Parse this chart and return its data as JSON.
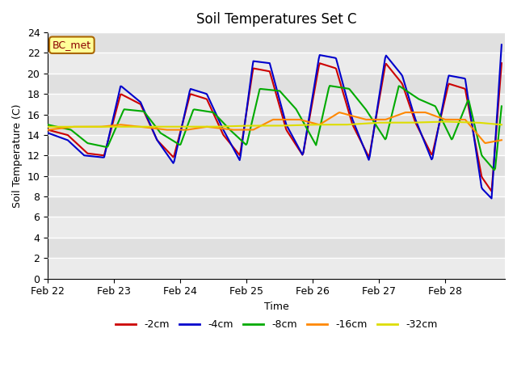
{
  "title": "Soil Temperatures Set C",
  "xlabel": "Time",
  "ylabel": "Soil Temperature (C)",
  "annotation": "BC_met",
  "ylim": [
    0,
    24
  ],
  "yticks": [
    0,
    2,
    4,
    6,
    8,
    10,
    12,
    14,
    16,
    18,
    20,
    22,
    24
  ],
  "xtick_labels": [
    "Feb 22",
    "Feb 23",
    "Feb 24",
    "Feb 25",
    "Feb 26",
    "Feb 27",
    "Feb 28"
  ],
  "plot_bg_color": "#e8e8e8",
  "grid_color": "#ffffff",
  "series": [
    {
      "label": "-2cm",
      "color": "#cc0000",
      "knots_x": [
        0,
        0.3,
        0.6,
        0.85,
        1.1,
        1.4,
        1.65,
        1.9,
        2.15,
        2.4,
        2.65,
        2.9,
        3.1,
        3.35,
        3.6,
        3.85,
        4.1,
        4.35,
        4.6,
        4.85,
        5.1,
        5.35,
        5.55,
        5.8,
        6.05,
        6.3,
        6.55,
        6.7,
        6.85
      ],
      "knots_y": [
        14.5,
        14.0,
        12.2,
        12.0,
        18.0,
        17.0,
        13.5,
        11.8,
        18.0,
        17.5,
        14.0,
        12.0,
        20.5,
        20.2,
        14.5,
        12.0,
        21.0,
        20.5,
        15.0,
        11.8,
        21.0,
        19.0,
        15.2,
        12.0,
        19.0,
        18.5,
        9.9,
        8.5,
        21.0
      ]
    },
    {
      "label": "-4cm",
      "color": "#0000cc",
      "knots_x": [
        0,
        0.3,
        0.55,
        0.85,
        1.1,
        1.4,
        1.65,
        1.9,
        2.15,
        2.4,
        2.65,
        2.9,
        3.1,
        3.35,
        3.6,
        3.85,
        4.1,
        4.35,
        4.6,
        4.85,
        5.1,
        5.35,
        5.55,
        5.8,
        6.05,
        6.3,
        6.55,
        6.7,
        6.85
      ],
      "knots_y": [
        14.2,
        13.5,
        12.0,
        11.8,
        18.8,
        17.2,
        13.5,
        11.2,
        18.5,
        18.0,
        14.5,
        11.5,
        21.2,
        21.0,
        15.0,
        12.0,
        21.8,
        21.5,
        15.5,
        11.5,
        21.8,
        19.8,
        15.5,
        11.5,
        19.8,
        19.5,
        8.8,
        7.8,
        22.8
      ]
    },
    {
      "label": "-8cm",
      "color": "#00aa00",
      "knots_x": [
        0,
        0.35,
        0.6,
        0.9,
        1.15,
        1.45,
        1.7,
        2.0,
        2.2,
        2.5,
        2.75,
        3.0,
        3.2,
        3.5,
        3.75,
        4.05,
        4.25,
        4.55,
        4.8,
        5.1,
        5.3,
        5.6,
        5.85,
        6.1,
        6.35,
        6.55,
        6.75,
        6.85
      ],
      "knots_y": [
        15.0,
        14.5,
        13.2,
        12.8,
        16.5,
        16.3,
        14.2,
        13.0,
        16.5,
        16.2,
        14.5,
        13.0,
        18.5,
        18.3,
        16.5,
        13.0,
        18.8,
        18.5,
        16.5,
        13.5,
        18.8,
        17.5,
        16.8,
        13.5,
        17.5,
        12.0,
        10.5,
        16.8
      ]
    },
    {
      "label": "-16cm",
      "color": "#ff8800",
      "knots_x": [
        0,
        0.4,
        0.8,
        1.1,
        1.4,
        1.8,
        2.1,
        2.4,
        2.8,
        3.1,
        3.4,
        3.8,
        4.1,
        4.4,
        4.8,
        5.1,
        5.4,
        5.7,
        6.0,
        6.3,
        6.6,
        6.85
      ],
      "knots_y": [
        14.5,
        14.8,
        14.8,
        15.0,
        14.8,
        14.5,
        14.5,
        14.8,
        14.5,
        14.5,
        15.5,
        15.5,
        15.0,
        16.2,
        15.5,
        15.5,
        16.2,
        16.2,
        15.5,
        15.5,
        13.2,
        13.5
      ]
    },
    {
      "label": "-32cm",
      "color": "#dddd00",
      "knots_x": [
        0,
        0.5,
        1.0,
        1.5,
        2.0,
        2.5,
        3.0,
        3.5,
        4.0,
        4.5,
        5.0,
        5.5,
        6.0,
        6.5,
        6.85
      ],
      "knots_y": [
        14.8,
        14.8,
        14.8,
        14.8,
        14.8,
        14.8,
        14.9,
        14.9,
        15.0,
        15.0,
        15.2,
        15.2,
        15.3,
        15.2,
        15.0
      ]
    }
  ],
  "legend_ncol": 5,
  "title_fontsize": 12,
  "label_fontsize": 9,
  "tick_fontsize": 9,
  "linewidth": 1.5
}
